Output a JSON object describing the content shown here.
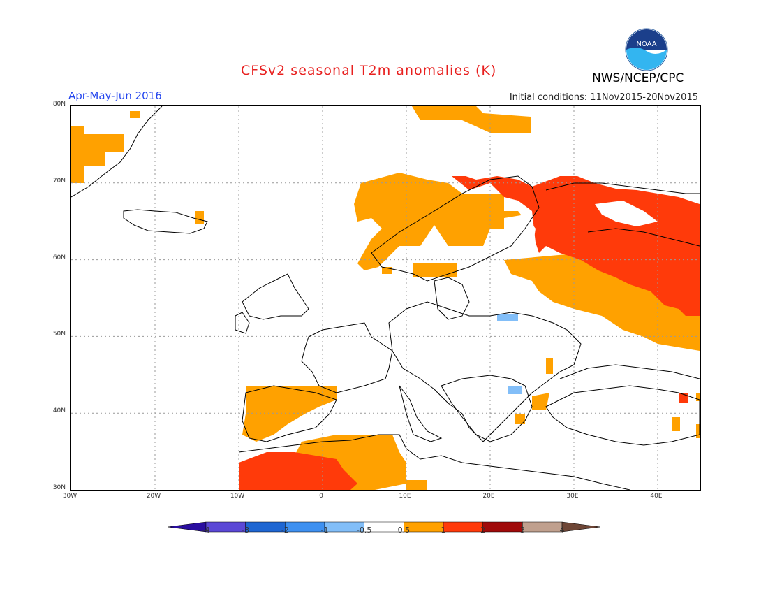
{
  "title": "CFSv2 seasonal T2m anomalies (K)",
  "subtitle": "Apr-May-Jun 2016",
  "init_conditions": "Initial conditions: 11Nov2015-20Nov2015",
  "agency": "NWS/NCEP/CPC",
  "logo_text": "NOAA",
  "colors": {
    "title": "#e8201f",
    "subtitle": "#2244ee",
    "land_outline": "#000000",
    "grid": "#999999"
  },
  "map": {
    "lat_labels": [
      "80N",
      "70N",
      "60N",
      "50N",
      "40N",
      "30N"
    ],
    "lon_labels": [
      "30W",
      "20W",
      "10W",
      "0",
      "10E",
      "20E",
      "30E",
      "40E"
    ],
    "grid": true
  },
  "colorbar": {
    "bins": [
      {
        "color": "#2a0ea0"
      },
      {
        "color": "#5b48d6"
      },
      {
        "color": "#1e66d2"
      },
      {
        "color": "#3e90f0"
      },
      {
        "color": "#82bef8"
      },
      {
        "color": "#ffffff"
      },
      {
        "color": "#ffa100"
      },
      {
        "color": "#ff3a0a"
      },
      {
        "color": "#a00a0a"
      },
      {
        "color": "#c0a08e"
      },
      {
        "color": "#6e4636"
      }
    ],
    "labels": [
      "-4",
      "-3",
      "-2",
      "-1",
      "-0.5",
      "0.5",
      "1",
      "2",
      "3",
      "4"
    ]
  }
}
